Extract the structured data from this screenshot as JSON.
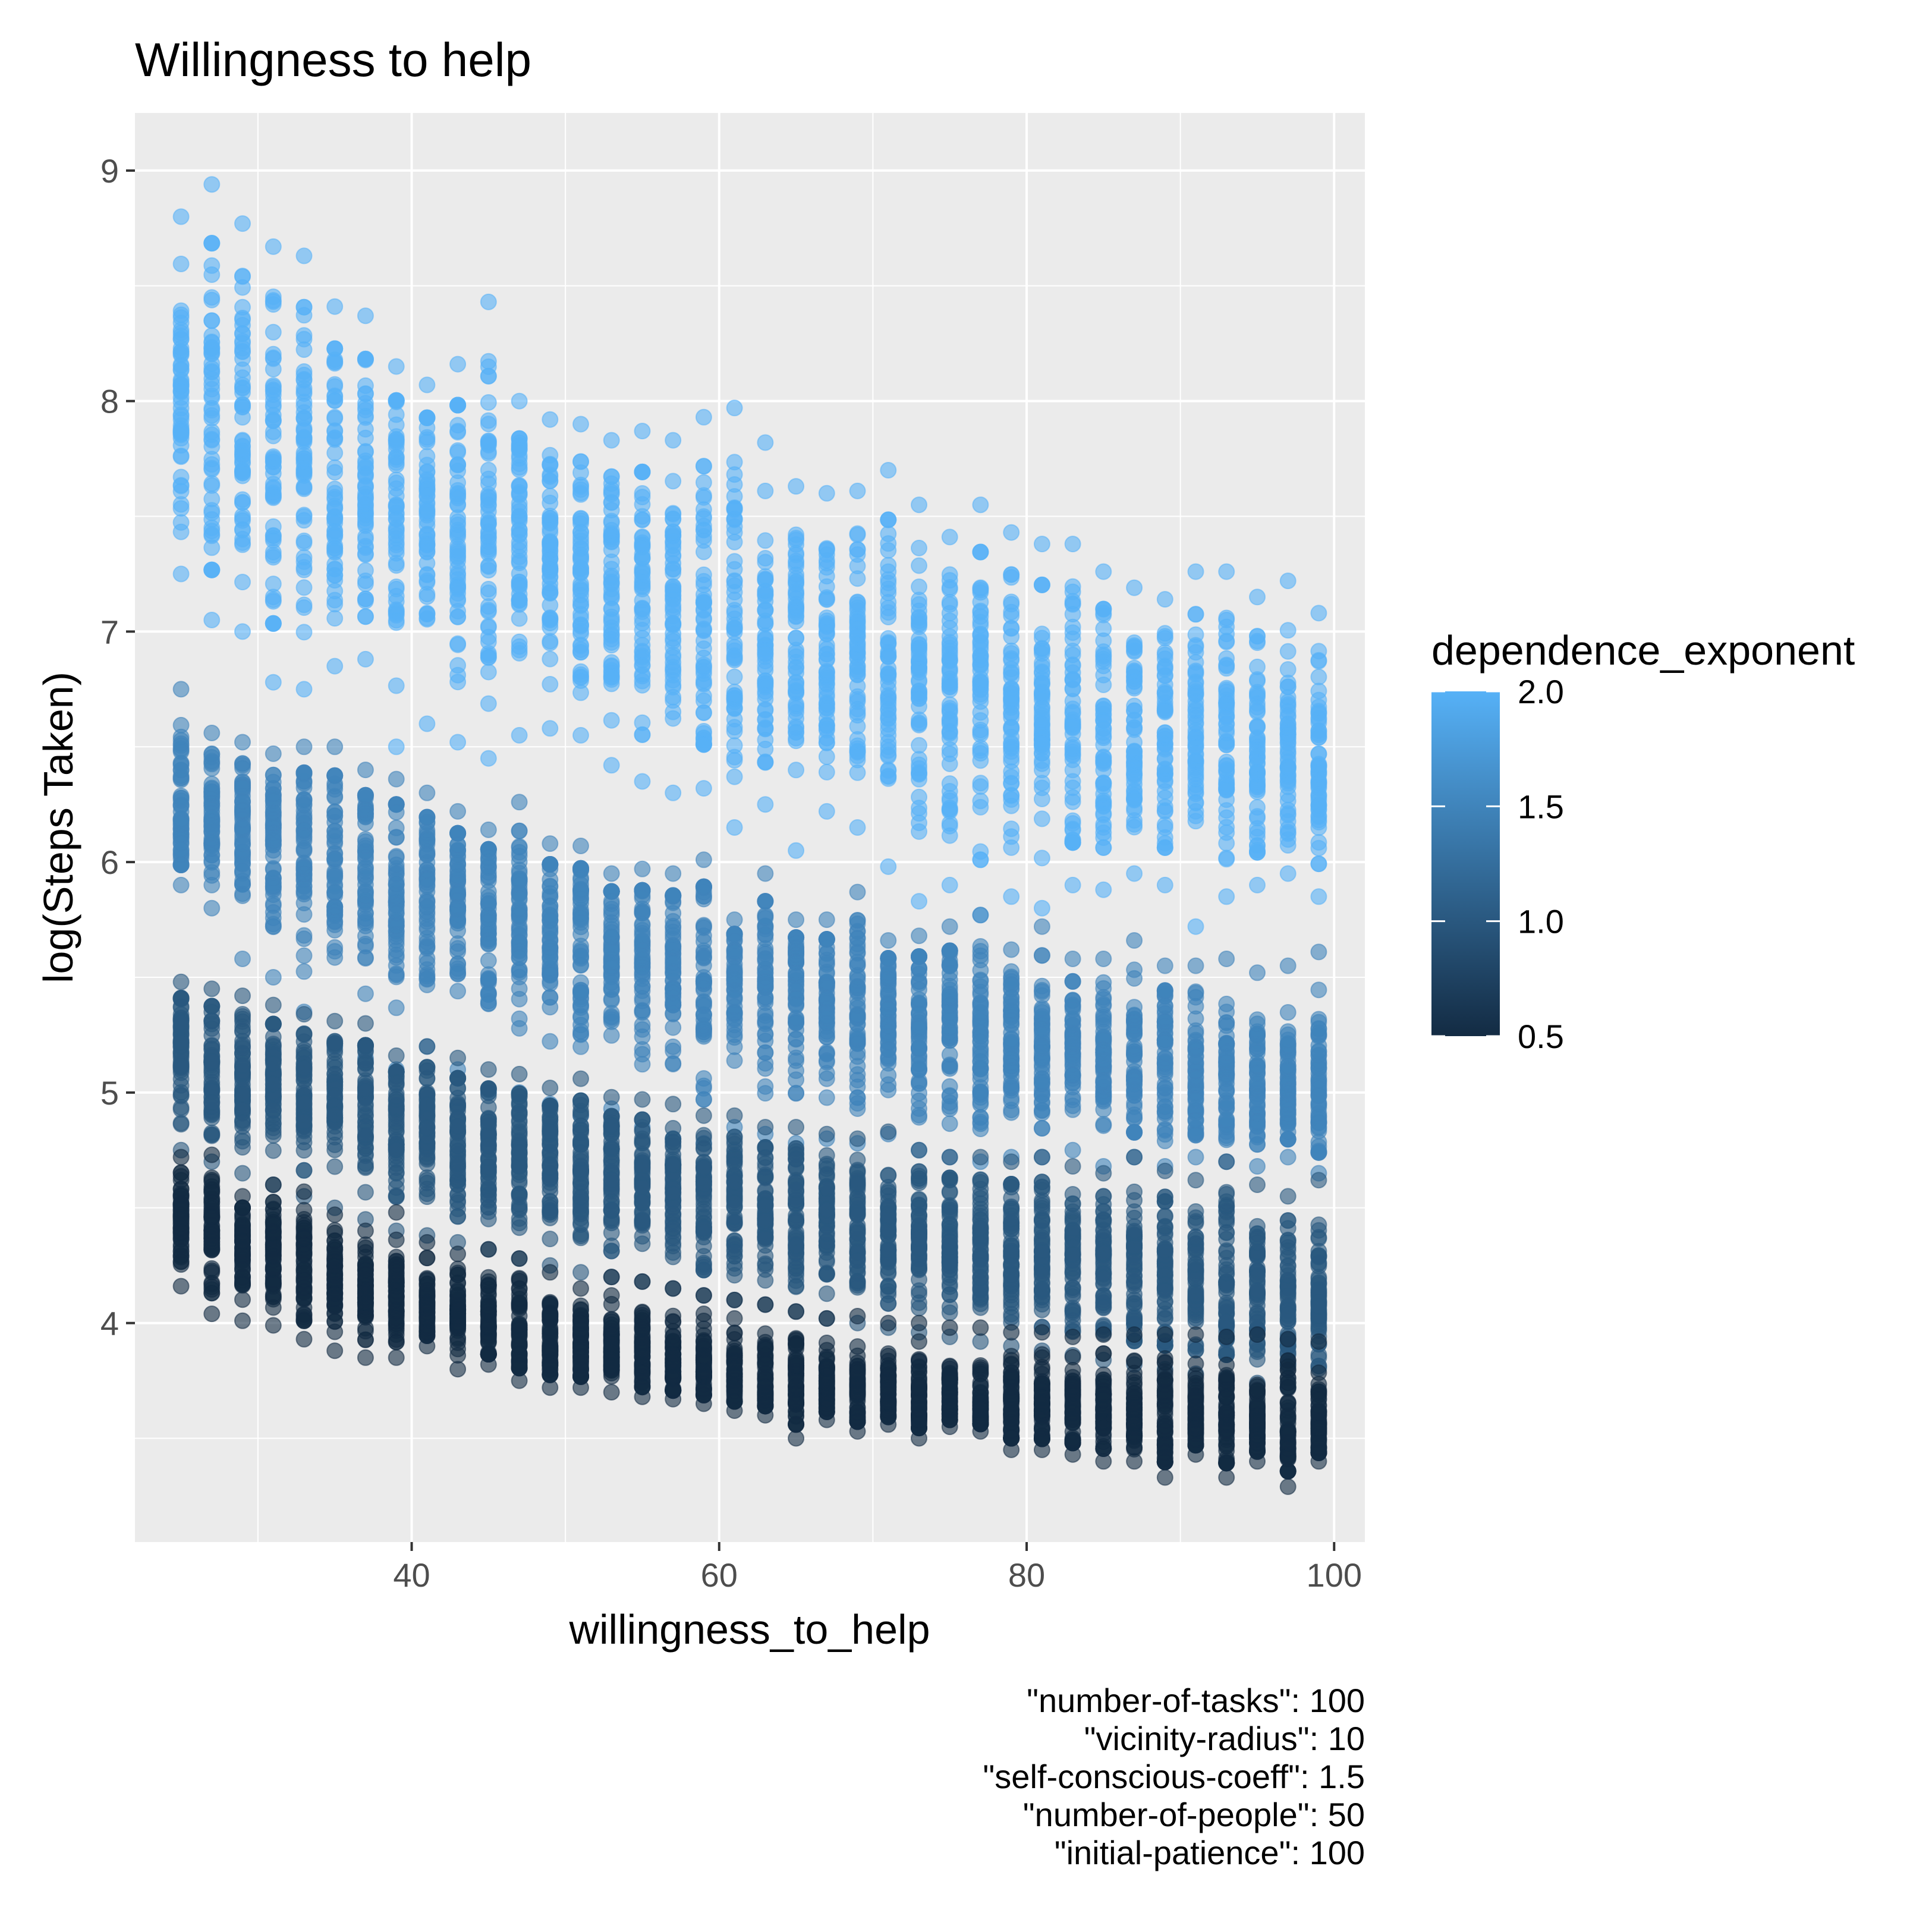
{
  "chart_data": {
    "type": "scatter",
    "title": "Willingness to help",
    "xlabel": "willingness_to_help",
    "ylabel": "log(Steps Taken)",
    "xlim": [
      22,
      102
    ],
    "ylim": [
      3.05,
      9.25
    ],
    "x_ticks": [
      "40",
      "60",
      "80",
      "100"
    ],
    "x_tick_values": [
      40,
      60,
      80,
      100
    ],
    "y_ticks": [
      "4",
      "5",
      "6",
      "7",
      "8",
      "9"
    ],
    "y_tick_values": [
      4,
      5,
      6,
      7,
      8,
      9
    ],
    "grid": true,
    "legend": {
      "title": "dependence_exponent",
      "placement": "right",
      "type": "colorbar",
      "labels": [
        "2.0",
        "1.5",
        "1.0",
        "0.5"
      ],
      "label_values": [
        2.0,
        1.5,
        1.0,
        0.5
      ],
      "range": [
        0.5,
        2.0
      ],
      "color_low": "#132B43",
      "color_high": "#56B1F7"
    },
    "caption": [
      "\"number-of-tasks\": 100",
      "\"vicinity-radius\": 10",
      "\"self-conscious-coeff\": 1.5",
      "\"number-of-people\": 50",
      "\"initial-patience\": 100"
    ],
    "point_alpha": 0.6,
    "series": [
      {
        "dependence_exponent": 2.0,
        "x": [
          25,
          27,
          29,
          31,
          33,
          35,
          37,
          39,
          41,
          43,
          45,
          47,
          49,
          51,
          53,
          55,
          57,
          59,
          61,
          63,
          65,
          67,
          69,
          71,
          73,
          75,
          77,
          79,
          81,
          83,
          85,
          87,
          89,
          91,
          93,
          95,
          97,
          99
        ],
        "center": [
          7.98,
          7.92,
          7.86,
          7.8,
          7.74,
          7.68,
          7.62,
          7.56,
          7.5,
          7.45,
          7.4,
          7.35,
          7.3,
          7.25,
          7.2,
          7.16,
          7.12,
          7.08,
          7.03,
          6.98,
          6.94,
          6.9,
          6.87,
          6.84,
          6.8,
          6.76,
          6.73,
          6.7,
          6.67,
          6.64,
          6.61,
          6.58,
          6.55,
          6.52,
          6.5,
          6.47,
          6.44,
          6.42
        ],
        "low": [
          7.25,
          7.05,
          7.0,
          6.78,
          6.75,
          6.85,
          6.88,
          6.5,
          6.6,
          6.52,
          6.45,
          6.55,
          6.58,
          6.55,
          6.42,
          6.35,
          6.3,
          6.32,
          6.15,
          6.25,
          6.05,
          6.22,
          6.15,
          5.98,
          5.83,
          5.9,
          5.77,
          5.85,
          5.8,
          5.9,
          5.88,
          5.95,
          5.9,
          5.72,
          5.85,
          5.9,
          5.95,
          5.85
        ],
        "high": [
          8.8,
          8.94,
          8.77,
          8.67,
          8.63,
          8.41,
          8.37,
          8.15,
          8.07,
          8.16,
          8.43,
          8.0,
          7.92,
          7.9,
          7.83,
          7.87,
          7.83,
          7.93,
          7.97,
          7.82,
          7.63,
          7.6,
          7.61,
          7.7,
          7.55,
          7.41,
          7.55,
          7.43,
          7.38,
          7.38,
          7.26,
          7.19,
          7.14,
          7.26,
          7.26,
          7.15,
          7.22,
          7.08
        ]
      },
      {
        "dependence_exponent": 1.5,
        "x": [
          25,
          27,
          29,
          31,
          33,
          35,
          37,
          39,
          41,
          43,
          45,
          47,
          49,
          51,
          53,
          55,
          57,
          59,
          61,
          63,
          65,
          67,
          69,
          71,
          73,
          75,
          77,
          79,
          81,
          83,
          85,
          87,
          89,
          91,
          93,
          95,
          97,
          99
        ],
        "center": [
          6.25,
          6.2,
          6.15,
          6.1,
          6.05,
          6.0,
          5.96,
          5.92,
          5.88,
          5.84,
          5.8,
          5.76,
          5.72,
          5.68,
          5.64,
          5.6,
          5.57,
          5.54,
          5.5,
          5.47,
          5.44,
          5.41,
          5.38,
          5.35,
          5.32,
          5.3,
          5.27,
          5.24,
          5.22,
          5.19,
          5.17,
          5.15,
          5.12,
          5.1,
          5.08,
          5.06,
          5.03,
          5.01
        ],
        "low": [
          5.9,
          5.8,
          5.58,
          5.5,
          5.35,
          5.2,
          5.15,
          5.1,
          5.2,
          5.1,
          5.0,
          5.0,
          4.95,
          4.9,
          4.93,
          4.85,
          4.8,
          4.78,
          4.85,
          4.82,
          4.78,
          4.8,
          4.78,
          4.82,
          4.75,
          4.72,
          4.7,
          4.72,
          4.72,
          4.75,
          4.68,
          4.72,
          4.68,
          4.72,
          4.7,
          4.68,
          4.72,
          4.65
        ],
        "high": [
          6.75,
          6.56,
          6.52,
          6.47,
          6.5,
          6.5,
          6.4,
          6.36,
          6.3,
          6.22,
          6.14,
          6.26,
          6.08,
          6.07,
          5.95,
          5.97,
          5.95,
          6.01,
          5.75,
          5.95,
          5.75,
          5.75,
          5.87,
          5.66,
          5.68,
          5.72,
          5.77,
          5.62,
          5.72,
          5.58,
          5.58,
          5.66,
          5.55,
          5.55,
          5.58,
          5.52,
          5.55,
          5.61
        ]
      },
      {
        "dependence_exponent": 1.0,
        "x": [
          25,
          27,
          29,
          31,
          33,
          35,
          37,
          39,
          41,
          43,
          45,
          47,
          49,
          51,
          53,
          55,
          57,
          59,
          61,
          63,
          65,
          67,
          69,
          71,
          73,
          75,
          77,
          79,
          81,
          83,
          85,
          87,
          89,
          91,
          93,
          95,
          97,
          99
        ],
        "center": [
          5.2,
          5.15,
          5.1,
          5.05,
          5.0,
          4.96,
          4.92,
          4.88,
          4.84,
          4.8,
          4.77,
          4.74,
          4.71,
          4.68,
          4.65,
          4.62,
          4.59,
          4.56,
          4.53,
          4.5,
          4.48,
          4.45,
          4.43,
          4.4,
          4.38,
          4.36,
          4.33,
          4.31,
          4.29,
          4.27,
          4.25,
          4.23,
          4.21,
          4.19,
          4.17,
          4.15,
          4.13,
          4.11
        ],
        "low": [
          4.75,
          4.7,
          4.65,
          4.6,
          4.55,
          4.5,
          4.45,
          4.4,
          4.38,
          4.35,
          4.32,
          4.28,
          4.25,
          4.22,
          4.2,
          4.18,
          4.15,
          4.12,
          4.1,
          4.08,
          4.05,
          4.02,
          4.0,
          3.98,
          3.96,
          3.94,
          3.92,
          3.9,
          3.88,
          3.86,
          3.84,
          3.82,
          3.8,
          3.78,
          3.76,
          3.74,
          3.72,
          3.7
        ],
        "high": [
          5.48,
          5.45,
          5.42,
          5.38,
          5.34,
          5.31,
          5.3,
          5.16,
          5.2,
          5.15,
          5.1,
          5.08,
          5.02,
          5.06,
          4.98,
          4.97,
          4.95,
          4.9,
          4.9,
          4.85,
          4.85,
          4.82,
          4.8,
          4.83,
          4.75,
          4.72,
          4.72,
          4.7,
          4.72,
          4.68,
          4.65,
          4.72,
          4.66,
          4.62,
          4.7,
          4.6,
          4.55,
          4.62
        ]
      },
      {
        "dependence_exponent": 0.5,
        "x": [
          25,
          27,
          29,
          31,
          33,
          35,
          37,
          39,
          41,
          43,
          45,
          47,
          49,
          51,
          53,
          55,
          57,
          59,
          61,
          63,
          65,
          67,
          69,
          71,
          73,
          75,
          77,
          79,
          81,
          83,
          85,
          87,
          89,
          91,
          93,
          95,
          97,
          99
        ],
        "center": [
          4.45,
          4.4,
          4.35,
          4.3,
          4.25,
          4.2,
          4.16,
          4.12,
          4.08,
          4.04,
          4.0,
          3.97,
          3.94,
          3.91,
          3.88,
          3.85,
          3.82,
          3.8,
          3.78,
          3.76,
          3.74,
          3.72,
          3.7,
          3.69,
          3.68,
          3.67,
          3.66,
          3.65,
          3.64,
          3.63,
          3.62,
          3.61,
          3.6,
          3.59,
          3.58,
          3.57,
          3.56,
          3.55
        ],
        "low": [
          4.16,
          4.04,
          4.01,
          3.99,
          3.93,
          3.88,
          3.85,
          3.85,
          3.9,
          3.8,
          3.82,
          3.75,
          3.72,
          3.72,
          3.7,
          3.68,
          3.67,
          3.65,
          3.62,
          3.6,
          3.5,
          3.58,
          3.53,
          3.56,
          3.5,
          3.55,
          3.53,
          3.45,
          3.45,
          3.43,
          3.4,
          3.4,
          3.33,
          3.43,
          3.33,
          3.4,
          3.29,
          3.4
        ],
        "high": [
          4.72,
          4.73,
          4.55,
          4.6,
          4.57,
          4.47,
          4.4,
          4.48,
          4.35,
          4.3,
          4.32,
          4.28,
          4.22,
          4.15,
          4.2,
          4.18,
          4.15,
          4.12,
          4.1,
          4.08,
          4.05,
          4.02,
          4.03,
          4.0,
          4.0,
          3.98,
          3.98,
          3.96,
          3.96,
          3.94,
          3.95,
          3.95,
          3.95,
          3.95,
          3.94,
          3.95,
          3.93,
          3.92
        ]
      }
    ]
  }
}
